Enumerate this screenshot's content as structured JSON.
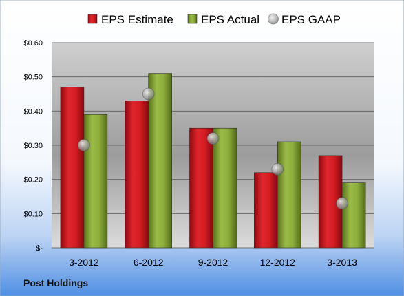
{
  "chart_data": {
    "type": "bar",
    "title": "",
    "xlabel": "",
    "ylabel": "",
    "company": "Post Holdings",
    "categories": [
      "3-2012",
      "6-2012",
      "9-2012",
      "12-2012",
      "3-2013"
    ],
    "y_ticks": [
      "$-",
      "$0.10",
      "$0.20",
      "$0.30",
      "$0.40",
      "$0.50",
      "$0.60"
    ],
    "ylim": [
      0,
      0.6
    ],
    "grid": true,
    "legend_position": "top",
    "series": [
      {
        "name": "EPS Estimate",
        "kind": "bar",
        "color": "#c0131b",
        "values": [
          0.47,
          0.43,
          0.35,
          0.22,
          0.27
        ]
      },
      {
        "name": "EPS Actual",
        "kind": "bar",
        "color": "#7d9b2e",
        "values": [
          0.39,
          0.51,
          0.35,
          0.31,
          0.19
        ]
      },
      {
        "name": "EPS GAAP",
        "kind": "point",
        "color": "#a9a9a9",
        "values": [
          0.3,
          0.45,
          0.32,
          0.23,
          0.13
        ]
      }
    ]
  }
}
